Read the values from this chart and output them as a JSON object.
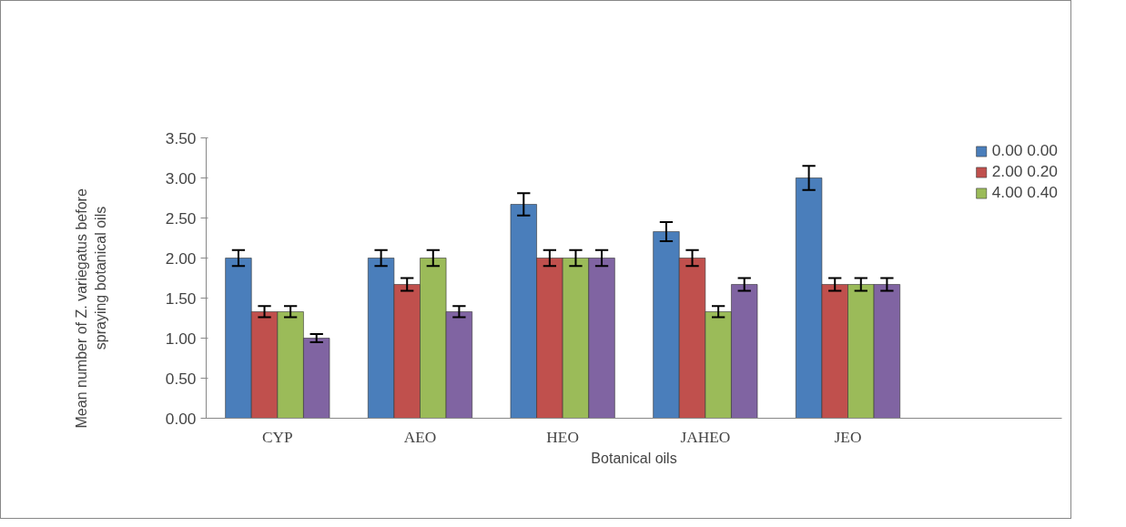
{
  "chart_data": {
    "type": "bar",
    "xlabel": "Botanical oils",
    "ylabel": "Mean    number    of    Z.    variegatus    before\nspraying botanical oils",
    "categories": [
      "CYP",
      "AEO",
      "HEO",
      "JAHEO",
      "JEO"
    ],
    "series": [
      {
        "name": "0.00 0.00",
        "color": "#4a7ebb",
        "values": [
          2.0,
          2.0,
          2.67,
          2.33,
          3.0
        ],
        "errors": [
          0.1,
          0.1,
          0.14,
          0.12,
          0.15
        ]
      },
      {
        "name": "2.00 0.20",
        "color": "#c0504d",
        "values": [
          1.33,
          1.67,
          2.0,
          2.0,
          1.67
        ],
        "errors": [
          0.07,
          0.08,
          0.1,
          0.1,
          0.08
        ]
      },
      {
        "name": "4.00 0.40",
        "color": "#9bbb59",
        "values": [
          1.33,
          2.0,
          2.0,
          1.33,
          1.67
        ],
        "errors": [
          0.07,
          0.1,
          0.1,
          0.07,
          0.08
        ]
      },
      {
        "color": "#8064a2",
        "values": [
          1.0,
          1.33,
          2.0,
          1.67,
          1.67
        ],
        "errors": [
          0.05,
          0.07,
          0.1,
          0.08,
          0.08
        ]
      }
    ],
    "ylim": [
      0,
      3.5
    ],
    "yticks": [
      {
        "value": 0,
        "label": "0.00"
      },
      {
        "value": 0.5,
        "label": "0.50"
      },
      {
        "value": 1,
        "label": "1.00"
      },
      {
        "value": 1.5,
        "label": "1.50"
      },
      {
        "value": 2,
        "label": "2.00"
      },
      {
        "value": 2.5,
        "label": "2.50"
      },
      {
        "value": 3,
        "label": "3.00"
      },
      {
        "value": 3.5,
        "label": "3.50"
      }
    ],
    "grid": false,
    "legend": "top right"
  }
}
